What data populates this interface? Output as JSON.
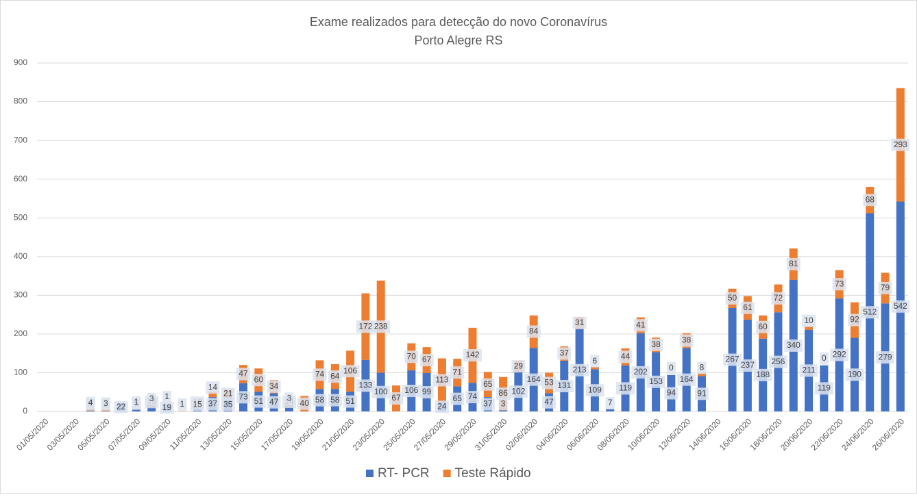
{
  "chart_data": {
    "type": "stacked-bar",
    "title": "Exame realizados para detecção do novo Coronavírus",
    "subtitle": "Porto Alegre RS",
    "categories": [
      "01/05/2020",
      null,
      "03/05/2020",
      null,
      "05/05/2020",
      null,
      "07/05/2020",
      null,
      "09/05/2020",
      null,
      "11/05/2020",
      null,
      "13/05/2020",
      null,
      "15/05/2020",
      null,
      "17/05/2020",
      null,
      "19/05/2020",
      null,
      "21/05/2020",
      null,
      "23/05/2020",
      null,
      "25/05/2020",
      null,
      "27/05/2020",
      null,
      "29/05/2020",
      null,
      "31/05/2020",
      null,
      "02/06/2020",
      null,
      "04/06/2020",
      null,
      "06/06/2020",
      null,
      "08/06/2020",
      null,
      "10/06/2020",
      null,
      "12/06/2020",
      null,
      "14/06/2020",
      null,
      "16/06/2020",
      null,
      "18/06/2020",
      null,
      "20/06/2020",
      null,
      "22/06/2020",
      null,
      "24/06/2020",
      null,
      "26/06/2020"
    ],
    "series": [
      {
        "name": "RT- PCR",
        "color": "#4472c4",
        "values": [
          null,
          null,
          null,
          2,
          1,
          22,
          5,
          13,
          19,
          null,
          10,
          37,
          35,
          73,
          51,
          47,
          14,
          null,
          58,
          58,
          51,
          133,
          100,
          null,
          106,
          99,
          24,
          65,
          74,
          37,
          3,
          102,
          164,
          47,
          131,
          213,
          109,
          7,
          119,
          202,
          153,
          94,
          164,
          91,
          null,
          267,
          237,
          188,
          256,
          340,
          211,
          119,
          292,
          190,
          512,
          279,
          542
        ]
      },
      {
        "name": "Teste Rápido",
        "color": "#ed7d31",
        "values": [
          null,
          null,
          null,
          4,
          3,
          null,
          1,
          3,
          1,
          1,
          15,
          14,
          21,
          47,
          60,
          34,
          3,
          40,
          74,
          64,
          106,
          172,
          238,
          67,
          70,
          67,
          113,
          71,
          142,
          65,
          86,
          29,
          84,
          53,
          37,
          31,
          6,
          null,
          44,
          41,
          38,
          0,
          38,
          8,
          null,
          50,
          61,
          60,
          72,
          81,
          10,
          0,
          73,
          92,
          68,
          79,
          293
        ]
      }
    ],
    "ylim": [
      0,
      900
    ],
    "yticks": [
      0,
      100,
      200,
      300,
      400,
      500,
      600,
      700,
      800,
      900
    ],
    "grid": true,
    "legend": "bottom"
  }
}
